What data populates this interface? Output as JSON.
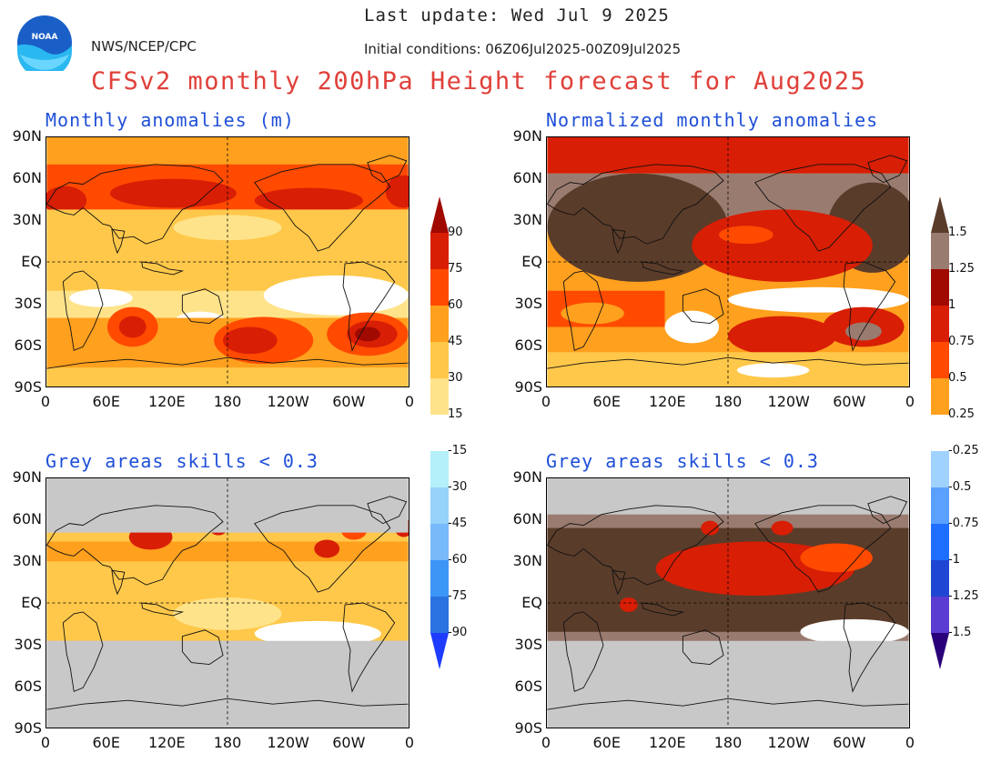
{
  "header": {
    "last_update": "Last update: Wed Jul 9 2025",
    "org": "NWS/NCEP/CPC",
    "initial_conditions": "Initial conditions: 06Z06Jul2025-00Z09Jul2025",
    "title": "CFSv2 monthly 200hPa Height forecast for Aug2025",
    "logo_text": "NOAA"
  },
  "panels": {
    "top_left": "Monthly anomalies (m)",
    "top_right": "Normalized monthly anomalies",
    "bottom_left": "Grey areas skills < 0.3",
    "bottom_right": "Grey areas skills < 0.3"
  },
  "axes": {
    "lat_labels": [
      "90N",
      "60N",
      "30N",
      "EQ",
      "30S",
      "60S",
      "90S"
    ],
    "lon_labels": [
      "0",
      "60E",
      "120E",
      "180",
      "120W",
      "60W",
      "0"
    ]
  },
  "colorbar_left": {
    "labels": [
      "90",
      "75",
      "60",
      "45",
      "30",
      "15",
      "-15",
      "-30",
      "-45",
      "-60",
      "-75",
      "-90"
    ]
  },
  "colorbar_right": {
    "labels": [
      "1.5",
      "1.25",
      "1",
      "0.75",
      "0.5",
      "0.25",
      "-0.25",
      "-0.5",
      "-0.75",
      "-1",
      "-1.25",
      "-1.5"
    ]
  },
  "colors": {
    "pos": [
      "#a00a00",
      "#d81e05",
      "#ff4a00",
      "#ffa01e",
      "#ffc84a",
      "#ffe38a"
    ],
    "neg": [
      "#b4f0fa",
      "#96d2fa",
      "#78b9fa",
      "#3c96f5",
      "#2a72e0",
      "#1e3cff"
    ],
    "neg_norm": [
      "#a0d2ff",
      "#5aa0ff",
      "#1e6eff",
      "#1e46d2",
      "#5a3cd2",
      "#2a007a"
    ],
    "norm_top": [
      "#5a3c2a",
      "#9a7b70"
    ],
    "grey": "#c8c8c8",
    "title": "#e0403a",
    "panel_title": "#1f4fd8"
  }
}
